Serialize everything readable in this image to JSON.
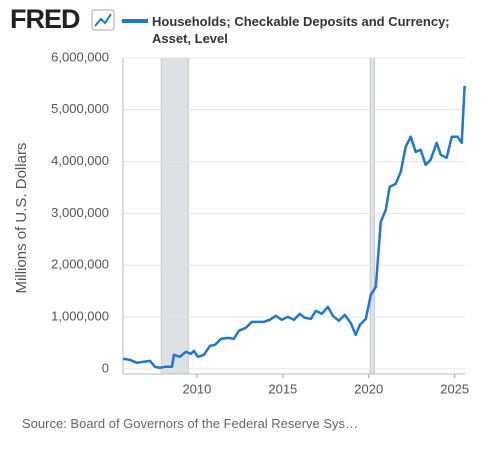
{
  "logo": "FRED",
  "chart_data": {
    "type": "line",
    "ylabel": "Millions of U.S. Dollars",
    "source": "Source: Board of Governors of the Federal Reserve Sys…",
    "xlim": [
      2005.7,
      2025.6
    ],
    "xticks": [
      2010,
      2015,
      2020,
      2025
    ],
    "ylim": [
      -100000,
      6000000
    ],
    "yticks": [
      0,
      {
        "value": 1000000,
        "label": "1,000,000"
      },
      {
        "value": 2000000,
        "label": "2,000,000"
      },
      {
        "value": 3000000,
        "label": "3,000,000"
      },
      {
        "value": 4000000,
        "label": "4,000,000"
      },
      {
        "value": 5000000,
        "label": "5,000,000"
      },
      {
        "value": 6000000,
        "label": "6,000,000"
      }
    ],
    "grid": true,
    "recessions": [
      [
        2007.92,
        2009.5
      ],
      [
        2020.08,
        2020.33
      ]
    ],
    "recession_color": "#dde1e6",
    "x": [
      2005.7,
      2006.1,
      2006.51,
      2006.86,
      2007.27,
      2007.56,
      2007.85,
      2008.14,
      2008.55,
      2008.66,
      2009.01,
      2009.36,
      2009.65,
      2009.83,
      2010.06,
      2010.41,
      2010.76,
      2011.05,
      2011.4,
      2011.8,
      2012.15,
      2012.44,
      2012.85,
      2013.2,
      2013.55,
      2013.9,
      2014.24,
      2014.59,
      2014.94,
      2015.29,
      2015.64,
      2015.99,
      2016.28,
      2016.63,
      2016.92,
      2017.27,
      2017.62,
      2017.91,
      2018.26,
      2018.6,
      2018.95,
      2019.24,
      2019.48,
      2019.83,
      2020.12,
      2020.41,
      2020.7,
      2020.99,
      2021.22,
      2021.57,
      2021.86,
      2022.15,
      2022.44,
      2022.73,
      2023.02,
      2023.31,
      2023.6,
      2023.95,
      2024.19,
      2024.53,
      2024.83,
      2025.17,
      2025.41,
      2025.58
    ],
    "series": [
      {
        "name": "Households; Checkable Deposits and Currency; Asset, Level",
        "color": "#1f77d0",
        "values": [
          193000,
          174000,
          116000,
          135000,
          154000,
          39000,
          20000,
          39000,
          39000,
          270000,
          232000,
          328000,
          290000,
          347000,
          232000,
          270000,
          444000,
          463000,
          579000,
          598000,
          579000,
          734000,
          792000,
          907000,
          907000,
          907000,
          946000,
          1023000,
          946000,
          1004000,
          946000,
          1062000,
          985000,
          965000,
          1120000,
          1062000,
          1197000,
          1023000,
          927000,
          1042000,
          888000,
          656000,
          849000,
          965000,
          1429000,
          1583000,
          2838000,
          3069000,
          3514000,
          3571000,
          3803000,
          4286000,
          4479000,
          4189000,
          4228000,
          3938000,
          4035000,
          4363000,
          4131000,
          4073000,
          4479000,
          4479000,
          4363000,
          5463000
        ]
      }
    ]
  }
}
